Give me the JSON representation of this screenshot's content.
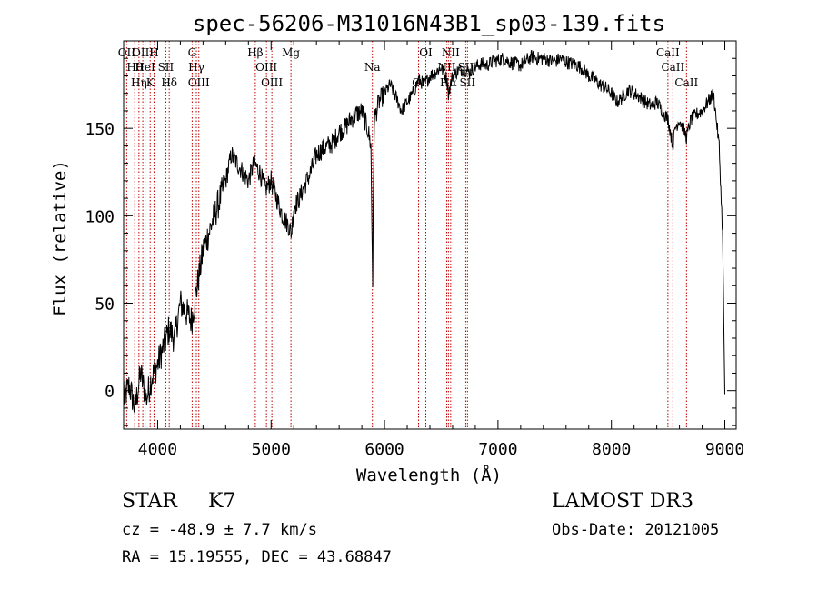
{
  "chart_data": {
    "type": "line",
    "title": "spec-56206-M31016N43B1_sp03-139.fits",
    "xlabel": "Wavelength (Å)",
    "ylabel": "Flux (relative)",
    "xlim": [
      3700,
      9100
    ],
    "ylim": [
      -22,
      200
    ],
    "x_ticks": [
      4000,
      5000,
      6000,
      7000,
      8000,
      9000
    ],
    "y_ticks": [
      0,
      50,
      100,
      150
    ],
    "grid": false,
    "series": [
      {
        "name": "spectrum",
        "x": [
          3700,
          3750,
          3800,
          3850,
          3900,
          3950,
          4000,
          4050,
          4100,
          4150,
          4200,
          4250,
          4300,
          4350,
          4400,
          4450,
          4500,
          4550,
          4600,
          4650,
          4700,
          4750,
          4800,
          4850,
          4900,
          4950,
          5000,
          5050,
          5100,
          5150,
          5180,
          5200,
          5250,
          5300,
          5350,
          5400,
          5450,
          5500,
          5550,
          5600,
          5650,
          5700,
          5750,
          5800,
          5850,
          5880,
          5890,
          5896,
          5900,
          5910,
          5950,
          6000,
          6050,
          6100,
          6150,
          6200,
          6250,
          6300,
          6350,
          6400,
          6450,
          6500,
          6550,
          6563,
          6600,
          6650,
          6700,
          6750,
          6800,
          6850,
          6900,
          6950,
          7000,
          7050,
          7100,
          7150,
          7200,
          7250,
          7300,
          7350,
          7400,
          7450,
          7500,
          7550,
          7600,
          7650,
          7700,
          7750,
          7800,
          7850,
          7900,
          7950,
          8000,
          8050,
          8100,
          8150,
          8200,
          8250,
          8300,
          8350,
          8400,
          8450,
          8500,
          8542,
          8560,
          8600,
          8662,
          8700,
          8750,
          8800,
          8850,
          8900,
          8950,
          8980,
          9000
        ],
        "y": [
          -5,
          3,
          -10,
          10,
          -5,
          8,
          15,
          25,
          35,
          30,
          50,
          45,
          40,
          60,
          80,
          90,
          100,
          110,
          120,
          135,
          130,
          125,
          120,
          130,
          125,
          115,
          120,
          110,
          100,
          95,
          90,
          105,
          110,
          118,
          125,
          135,
          138,
          140,
          142,
          148,
          150,
          155,
          158,
          160,
          150,
          140,
          90,
          62,
          100,
          155,
          165,
          170,
          175,
          168,
          160,
          165,
          170,
          178,
          175,
          180,
          182,
          185,
          178,
          170,
          180,
          183,
          184,
          182,
          185,
          187,
          186,
          188,
          189,
          190,
          188,
          187,
          186,
          189,
          191,
          190,
          190,
          189,
          188,
          190,
          188,
          187,
          186,
          184,
          180,
          178,
          175,
          173,
          170,
          165,
          168,
          172,
          170,
          168,
          165,
          163,
          165,
          160,
          155,
          140,
          150,
          155,
          145,
          155,
          158,
          160,
          165,
          170,
          140,
          90,
          -2
        ]
      }
    ],
    "lines": [
      {
        "wavelength": 3727,
        "label": "OII"
      },
      {
        "wavelength": 3798,
        "label": "Hθ"
      },
      {
        "wavelength": 3835,
        "label": "Hη"
      },
      {
        "wavelength": 3869,
        "label": "OIII"
      },
      {
        "wavelength": 3889,
        "label": "HeI"
      },
      {
        "wavelength": 3934,
        "label": "K"
      },
      {
        "wavelength": 3968,
        "label": "H"
      },
      {
        "wavelength": 4072,
        "label": "SII"
      },
      {
        "wavelength": 4102,
        "label": "Hδ"
      },
      {
        "wavelength": 4304,
        "label": "G"
      },
      {
        "wavelength": 4341,
        "label": "Hγ"
      },
      {
        "wavelength": 4363,
        "label": "OIII"
      },
      {
        "wavelength": 4861,
        "label": "Hβ"
      },
      {
        "wavelength": 4959,
        "label": "OIII"
      },
      {
        "wavelength": 5007,
        "label": "OIII"
      },
      {
        "wavelength": 5175,
        "label": "Mg"
      },
      {
        "wavelength": 5893,
        "label": "Na"
      },
      {
        "wavelength": 6300,
        "label": "OI"
      },
      {
        "wavelength": 6364,
        "label": "OI"
      },
      {
        "wavelength": 6548,
        "label": "NII"
      },
      {
        "wavelength": 6563,
        "label": "Hα"
      },
      {
        "wavelength": 6583,
        "label": "NII"
      },
      {
        "wavelength": 6716,
        "label": "SII"
      },
      {
        "wavelength": 6731,
        "label": "SII"
      },
      {
        "wavelength": 8498,
        "label": "CaII"
      },
      {
        "wavelength": 8542,
        "label": "CaII"
      },
      {
        "wavelength": 8662,
        "label": "CaII"
      }
    ]
  },
  "info": {
    "classification": "STAR",
    "subclass": "K7",
    "survey": "LAMOST DR3",
    "cz": "cz = -48.9 ± 7.7 km/s",
    "obs_date": "Obs-Date: 20121005",
    "radec": "RA =  15.19555, DEC =  43.68847"
  }
}
